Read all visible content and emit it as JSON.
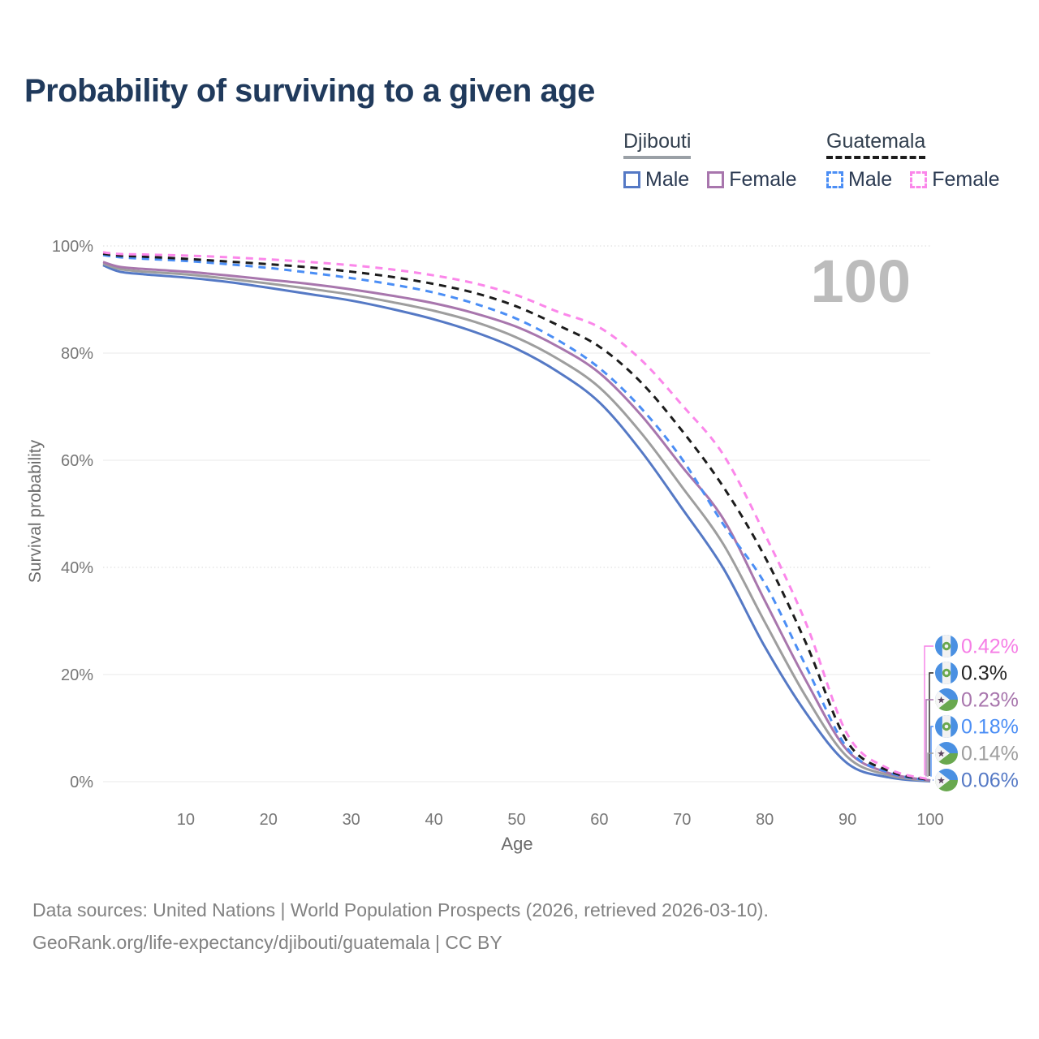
{
  "title": "Probability of surviving to a given age",
  "watermark": "100",
  "legend": {
    "groups": [
      {
        "country": "Djibouti",
        "line_style": "solid",
        "items": [
          {
            "label": "Male",
            "color": "#5579c5"
          },
          {
            "label": "Female",
            "color": "#a876ad"
          }
        ]
      },
      {
        "country": "Guatemala",
        "line_style": "dashed",
        "items": [
          {
            "label": "Male",
            "color": "#4b8ef5"
          },
          {
            "label": "Female",
            "color": "#fb87ea"
          }
        ]
      }
    ]
  },
  "chart_data": {
    "type": "line",
    "title": "Probability of surviving to a given age",
    "xlabel": "Age",
    "ylabel": "Survival probability",
    "xlim": [
      0,
      100
    ],
    "ylim": [
      0,
      100
    ],
    "grid": true,
    "x_ticks": [
      10,
      20,
      30,
      40,
      50,
      60,
      70,
      80,
      90,
      100
    ],
    "y_ticks": [
      0,
      20,
      40,
      60,
      80,
      100
    ],
    "y_tick_labels": [
      "0%",
      "20%",
      "40%",
      "60%",
      "80%",
      "100%"
    ],
    "ages": [
      0,
      2,
      5,
      10,
      15,
      20,
      25,
      30,
      35,
      40,
      45,
      50,
      55,
      60,
      65,
      70,
      75,
      80,
      85,
      90,
      95,
      100
    ],
    "series": [
      {
        "name": "Djibouti Male",
        "country": "Djibouti",
        "sex": "Male",
        "color": "#5579c5",
        "dash": false,
        "values": [
          96.4,
          95.2,
          94.7,
          94.1,
          93.3,
          92.2,
          91.0,
          89.8,
          88.2,
          86.3,
          83.9,
          80.8,
          76.5,
          70.8,
          61.8,
          51.0,
          39.8,
          25.2,
          12.8,
          3.4,
          0.8,
          0.06
        ]
      },
      {
        "name": "Djibouti Both sexes",
        "country": "Djibouti",
        "sex": "Both",
        "color": "#9e9e9e",
        "dash": false,
        "values": [
          96.7,
          95.7,
          95.2,
          94.7,
          93.9,
          93.0,
          92.0,
          90.9,
          89.5,
          87.9,
          85.8,
          82.9,
          78.9,
          73.6,
          65.2,
          55.0,
          44.3,
          29.8,
          15.8,
          4.6,
          1.2,
          0.14
        ]
      },
      {
        "name": "Djibouti Female",
        "country": "Djibouti",
        "sex": "Female",
        "color": "#a876ad",
        "dash": false,
        "values": [
          97.0,
          96.1,
          95.7,
          95.2,
          94.5,
          93.7,
          92.9,
          91.9,
          90.7,
          89.3,
          87.4,
          84.9,
          81.2,
          76.3,
          68.5,
          58.8,
          49.0,
          33.8,
          18.8,
          5.8,
          1.6,
          0.23
        ]
      },
      {
        "name": "Guatemala Male",
        "country": "Guatemala",
        "sex": "Male",
        "color": "#4b8ef5",
        "dash": true,
        "values": [
          98.3,
          97.9,
          97.6,
          97.2,
          96.6,
          95.9,
          95.0,
          94.0,
          92.8,
          91.3,
          89.2,
          86.4,
          82.4,
          77.2,
          69.8,
          60.2,
          48.0,
          37.0,
          21.5,
          6.2,
          1.7,
          0.18
        ]
      },
      {
        "name": "Guatemala Both sexes",
        "country": "Guatemala",
        "sex": "Both",
        "color": "#1c1c1c",
        "dash": true,
        "values": [
          98.55,
          98.2,
          98.0,
          97.6,
          97.1,
          96.6,
          96.0,
          95.2,
          94.2,
          92.9,
          91.2,
          88.7,
          85.2,
          81.2,
          74.6,
          65.5,
          55.0,
          42.0,
          25.8,
          7.4,
          2.0,
          0.3
        ]
      },
      {
        "name": "Guatemala Female",
        "country": "Guatemala",
        "sex": "Female",
        "color": "#fb87ea",
        "dash": true,
        "values": [
          98.8,
          98.5,
          98.4,
          98.2,
          97.9,
          97.5,
          97.0,
          96.4,
          95.6,
          94.5,
          93.0,
          90.8,
          87.7,
          84.8,
          78.8,
          70.3,
          61.0,
          46.2,
          29.5,
          8.8,
          2.4,
          0.42
        ]
      }
    ],
    "end_labels": [
      {
        "value": "0.42%",
        "country": "guatemala",
        "color": "#f67ee6",
        "series": "Guatemala Female"
      },
      {
        "value": "0.3%",
        "country": "guatemala",
        "color": "#222222",
        "series": "Guatemala Both sexes"
      },
      {
        "value": "0.23%",
        "country": "djibouti",
        "color": "#a876ad",
        "series": "Djibouti Female"
      },
      {
        "value": "0.18%",
        "country": "guatemala",
        "color": "#4b8ef5",
        "series": "Guatemala Male"
      },
      {
        "value": "0.14%",
        "country": "djibouti",
        "color": "#9e9e9e",
        "series": "Djibouti Both sexes"
      },
      {
        "value": "0.06%",
        "country": "djibouti",
        "color": "#5579c5",
        "series": "Djibouti Male"
      }
    ],
    "legend_position": "top-right"
  },
  "footer": {
    "line1": "Data sources: United Nations | World Population Prospects (2026, retrieved 2026-03-10).",
    "line2": "GeoRank.org/life-expectancy/djibouti/guatemala | CC BY"
  },
  "colors": {
    "title": "#203a5c",
    "tick_label": "#767676",
    "axis_title": "#6b6b6b",
    "gridline": "#e8e8e8",
    "watermark": "#bcbcbc"
  }
}
